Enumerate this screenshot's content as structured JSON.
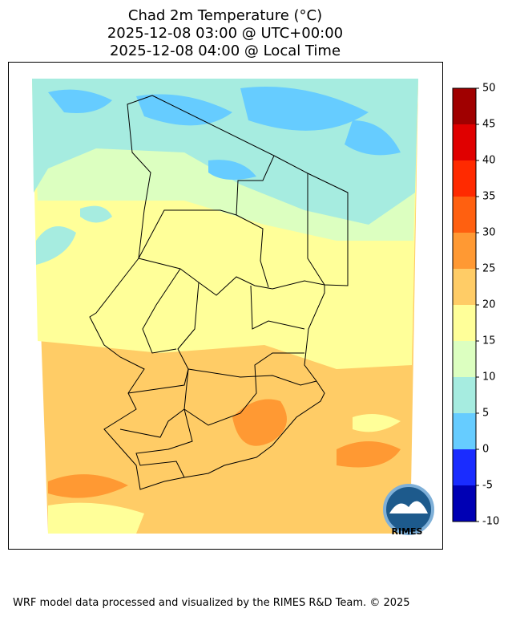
{
  "header": {
    "title_lines": [
      "Chad 2m Temperature (°C)",
      "2025-12-08 03:00 @ UTC+00:00",
      "2025-12-08 04:00 @ Local Time"
    ]
  },
  "colorbar": {
    "ticks": [
      -10,
      -5,
      0,
      5,
      10,
      15,
      20,
      25,
      30,
      35,
      40,
      45,
      50
    ],
    "colors": [
      "#0000b4",
      "#1a2cff",
      "#66ccff",
      "#a6ece0",
      "#dcffc0",
      "#ffff99",
      "#ffcc66",
      "#ff9933",
      "#ff6010",
      "#ff2a00",
      "#e00000",
      "#a00000"
    ]
  },
  "logo": {
    "text": "RIMES"
  },
  "footer": {
    "text": "WRF model data processed and visualized by the RIMES R&D Team. © 2025"
  }
}
